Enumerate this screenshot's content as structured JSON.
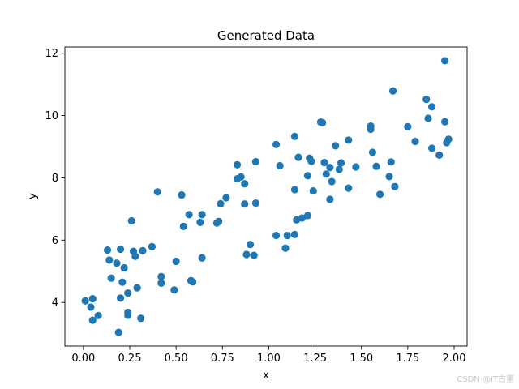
{
  "chart_data": {
    "type": "scatter",
    "title": "Generated Data",
    "xlabel": "x",
    "ylabel": "y",
    "xlim": [
      -0.1,
      2.07
    ],
    "ylim": [
      2.6,
      12.2
    ],
    "xticks": [
      0.0,
      0.25,
      0.5,
      0.75,
      1.0,
      1.25,
      1.5,
      1.75,
      2.0
    ],
    "xtick_labels": [
      "0.00",
      "0.25",
      "0.50",
      "0.75",
      "1.00",
      "1.25",
      "1.50",
      "1.75",
      "2.00"
    ],
    "yticks": [
      4,
      6,
      8,
      10,
      12
    ],
    "ytick_labels": [
      "4",
      "6",
      "8",
      "10",
      "12"
    ],
    "grid": false,
    "color": "#1f77b4",
    "points": [
      [
        0.01,
        4.05
      ],
      [
        0.04,
        3.85
      ],
      [
        0.05,
        4.12
      ],
      [
        0.05,
        3.43
      ],
      [
        0.08,
        3.58
      ],
      [
        0.13,
        5.68
      ],
      [
        0.14,
        5.36
      ],
      [
        0.15,
        4.78
      ],
      [
        0.18,
        5.26
      ],
      [
        0.19,
        3.04
      ],
      [
        0.2,
        4.14
      ],
      [
        0.2,
        5.71
      ],
      [
        0.21,
        4.65
      ],
      [
        0.22,
        5.11
      ],
      [
        0.24,
        3.59
      ],
      [
        0.24,
        3.68
      ],
      [
        0.24,
        4.3
      ],
      [
        0.26,
        6.62
      ],
      [
        0.27,
        5.64
      ],
      [
        0.28,
        5.48
      ],
      [
        0.29,
        4.47
      ],
      [
        0.31,
        3.49
      ],
      [
        0.32,
        5.66
      ],
      [
        0.37,
        5.79
      ],
      [
        0.4,
        7.55
      ],
      [
        0.42,
        4.62
      ],
      [
        0.42,
        4.83
      ],
      [
        0.49,
        4.4
      ],
      [
        0.5,
        5.32
      ],
      [
        0.53,
        7.45
      ],
      [
        0.54,
        6.44
      ],
      [
        0.57,
        6.82
      ],
      [
        0.58,
        4.7
      ],
      [
        0.59,
        4.66
      ],
      [
        0.63,
        6.57
      ],
      [
        0.64,
        6.82
      ],
      [
        0.64,
        5.43
      ],
      [
        0.72,
        6.55
      ],
      [
        0.73,
        6.6
      ],
      [
        0.74,
        7.17
      ],
      [
        0.77,
        7.36
      ],
      [
        0.83,
        8.42
      ],
      [
        0.83,
        7.97
      ],
      [
        0.85,
        8.03
      ],
      [
        0.87,
        7.81
      ],
      [
        0.87,
        7.16
      ],
      [
        0.88,
        5.54
      ],
      [
        0.9,
        5.86
      ],
      [
        0.92,
        5.51
      ],
      [
        0.93,
        8.52
      ],
      [
        0.93,
        7.19
      ],
      [
        1.04,
        9.07
      ],
      [
        1.04,
        6.15
      ],
      [
        1.06,
        8.39
      ],
      [
        1.09,
        5.74
      ],
      [
        1.1,
        6.15
      ],
      [
        1.14,
        6.18
      ],
      [
        1.14,
        7.62
      ],
      [
        1.14,
        9.33
      ],
      [
        1.15,
        6.65
      ],
      [
        1.16,
        8.66
      ],
      [
        1.18,
        6.71
      ],
      [
        1.21,
        8.07
      ],
      [
        1.21,
        6.79
      ],
      [
        1.22,
        8.63
      ],
      [
        1.23,
        8.53
      ],
      [
        1.24,
        7.58
      ],
      [
        1.28,
        9.79
      ],
      [
        1.29,
        9.77
      ],
      [
        1.3,
        8.49
      ],
      [
        1.31,
        8.12
      ],
      [
        1.33,
        8.33
      ],
      [
        1.33,
        7.31
      ],
      [
        1.34,
        7.88
      ],
      [
        1.36,
        9.03
      ],
      [
        1.38,
        8.27
      ],
      [
        1.39,
        8.48
      ],
      [
        1.43,
        9.21
      ],
      [
        1.43,
        7.67
      ],
      [
        1.47,
        8.35
      ],
      [
        1.55,
        9.56
      ],
      [
        1.55,
        9.66
      ],
      [
        1.56,
        8.82
      ],
      [
        1.58,
        8.37
      ],
      [
        1.6,
        7.47
      ],
      [
        1.65,
        8.04
      ],
      [
        1.66,
        8.51
      ],
      [
        1.67,
        10.79
      ],
      [
        1.68,
        7.72
      ],
      [
        1.75,
        9.64
      ],
      [
        1.79,
        9.17
      ],
      [
        1.85,
        10.52
      ],
      [
        1.86,
        9.91
      ],
      [
        1.88,
        10.28
      ],
      [
        1.88,
        8.95
      ],
      [
        1.92,
        8.73
      ],
      [
        1.95,
        9.8
      ],
      [
        1.95,
        11.76
      ],
      [
        1.96,
        9.13
      ],
      [
        1.97,
        9.24
      ]
    ]
  },
  "watermark": "CSDN @IT古董"
}
